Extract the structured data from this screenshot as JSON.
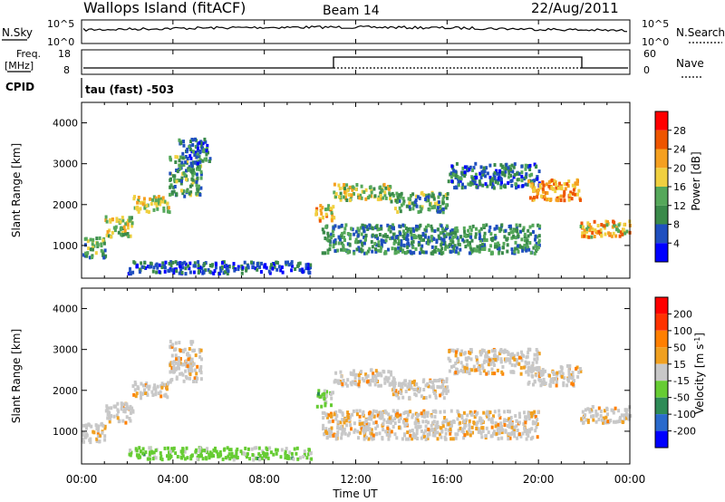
{
  "header": {
    "site": "Wallops Island (fitACF)",
    "beam": "Beam 14",
    "date": "22/Aug/2011"
  },
  "strip": {
    "nsky_label": "N.Sky",
    "nsky_ticks": [
      "10^5",
      "10^0"
    ],
    "nsearch_ticks": [
      "10^5",
      "10^0"
    ],
    "nsearch_label": "N.Search",
    "freq_label": "Freq.",
    "freq_unit": "[MHz]",
    "freq_ticks": [
      "18",
      "8"
    ],
    "nave_ticks": [
      "60",
      "0"
    ],
    "nave_label": "Nave",
    "cpid_label": "CPID",
    "cpid_value": "tau (fast) -503"
  },
  "colors": {
    "power": [
      "#0000ff",
      "#1f4fbf",
      "#3a8a4a",
      "#55a85a",
      "#f0d040",
      "#f5a020",
      "#ee5500",
      "#ff0000"
    ],
    "velocity": [
      "#0000ff",
      "#2a6acc",
      "#2e8b57",
      "#66cc33",
      "#c8c8c8",
      "#f0a020",
      "#ff7f00",
      "#ff3300",
      "#ff0000"
    ]
  },
  "chart_data": [
    {
      "type": "heatmap",
      "panel": "power",
      "ylabel": "Slant Range [km]",
      "yticks": [
        "1000",
        "2000",
        "3000",
        "4000"
      ],
      "ylim": [
        200,
        4500
      ],
      "xlim": [
        0,
        24
      ],
      "colorbar_label": "Power [dB]",
      "colorbar_ticks": [
        "4",
        "8",
        "12",
        "16",
        "20",
        "24",
        "28"
      ],
      "colorbar_range": [
        0,
        32
      ],
      "echo_bands": [
        {
          "t0": 0.0,
          "t1": 1.0,
          "r0": 700,
          "r1": 1200,
          "level": 14
        },
        {
          "t0": 1.0,
          "t1": 2.2,
          "r0": 1200,
          "r1": 1700,
          "level": 18
        },
        {
          "t0": 2.2,
          "t1": 3.8,
          "r0": 1800,
          "r1": 2200,
          "level": 20
        },
        {
          "t0": 3.8,
          "t1": 5.2,
          "r0": 2200,
          "r1": 3200,
          "level": 14
        },
        {
          "t0": 4.2,
          "t1": 5.6,
          "r0": 3000,
          "r1": 3600,
          "level": 10
        },
        {
          "t0": 10.2,
          "t1": 11.0,
          "r0": 1600,
          "r1": 2000,
          "level": 22
        },
        {
          "t0": 11.0,
          "t1": 13.5,
          "r0": 2100,
          "r1": 2500,
          "level": 18
        },
        {
          "t0": 13.5,
          "t1": 16.0,
          "r0": 1800,
          "r1": 2300,
          "level": 14
        },
        {
          "t0": 16.0,
          "t1": 20.0,
          "r0": 2400,
          "r1": 3000,
          "level": 10
        },
        {
          "t0": 19.5,
          "t1": 21.8,
          "r0": 2100,
          "r1": 2600,
          "level": 24
        },
        {
          "t0": 21.8,
          "t1": 24.0,
          "r0": 1200,
          "r1": 1600,
          "level": 22
        },
        {
          "t0": 10.5,
          "t1": 20.0,
          "r0": 800,
          "r1": 1500,
          "level": 12
        },
        {
          "t0": 2.0,
          "t1": 10.0,
          "r0": 300,
          "r1": 600,
          "level": 8
        }
      ]
    },
    {
      "type": "heatmap",
      "panel": "velocity",
      "ylabel": "Slant Range [km]",
      "yticks": [
        "1000",
        "2000",
        "3000",
        "4000"
      ],
      "ylim": [
        200,
        4500
      ],
      "xlim": [
        0,
        24
      ],
      "colorbar_label": "Velocity [m s^-1]",
      "colorbar_ticks": [
        "200",
        "100",
        "50",
        "15",
        "-15",
        "-50",
        "-100",
        "-200"
      ],
      "echo_bands": [
        {
          "t0": 0.0,
          "t1": 1.0,
          "r0": 700,
          "r1": 1200,
          "level": 1
        },
        {
          "t0": 1.0,
          "t1": 2.2,
          "r0": 1200,
          "r1": 1700,
          "level": 0
        },
        {
          "t0": 2.2,
          "t1": 3.8,
          "r0": 1800,
          "r1": 2200,
          "level": 1
        },
        {
          "t0": 3.8,
          "t1": 5.2,
          "r0": 2200,
          "r1": 3200,
          "level": 0
        },
        {
          "t0": 10.2,
          "t1": 11.0,
          "r0": 1600,
          "r1": 2000,
          "level": 3
        },
        {
          "t0": 11.0,
          "t1": 13.5,
          "r0": 2100,
          "r1": 2500,
          "level": 0
        },
        {
          "t0": 13.5,
          "t1": 16.0,
          "r0": 1800,
          "r1": 2300,
          "level": 0
        },
        {
          "t0": 16.0,
          "t1": 20.0,
          "r0": 2400,
          "r1": 3000,
          "level": 1
        },
        {
          "t0": 19.5,
          "t1": 21.8,
          "r0": 2100,
          "r1": 2600,
          "level": 1
        },
        {
          "t0": 21.8,
          "t1": 24.0,
          "r0": 1200,
          "r1": 1600,
          "level": 0
        },
        {
          "t0": 10.5,
          "t1": 20.0,
          "r0": 800,
          "r1": 1500,
          "level": 0
        },
        {
          "t0": 2.0,
          "t1": 10.0,
          "r0": 300,
          "r1": 600,
          "level": 3
        }
      ]
    }
  ],
  "xaxis": {
    "ticks": [
      "00:00",
      "04:00",
      "08:00",
      "12:00",
      "16:00",
      "20:00",
      "00:00"
    ],
    "label": "Time UT"
  }
}
